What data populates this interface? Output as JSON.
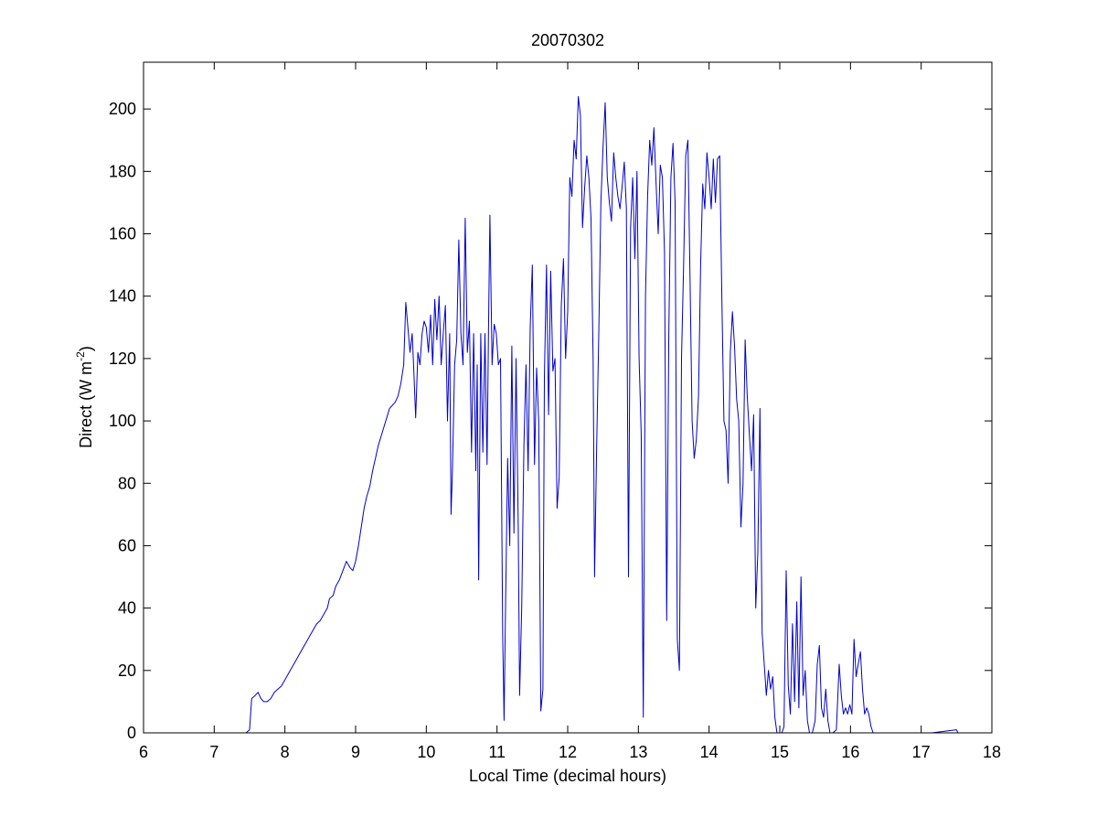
{
  "chart_data": {
    "type": "line",
    "title": "20070302",
    "xlabel": "Local Time (decimal hours)",
    "ylabel": {
      "main": "Direct (W m",
      "superscript": "-2",
      "close": ")"
    },
    "xlim": [
      6,
      18
    ],
    "ylim": [
      0,
      215
    ],
    "x_ticks": [
      6,
      7,
      8,
      9,
      10,
      11,
      12,
      13,
      14,
      15,
      16,
      17,
      18
    ],
    "y_ticks": [
      0,
      20,
      40,
      60,
      80,
      100,
      120,
      140,
      160,
      180,
      200
    ],
    "grid": false,
    "legend": "none",
    "series": [
      {
        "color": "#0000cc",
        "points": [
          [
            6.85,
            0
          ],
          [
            7.45,
            0
          ],
          [
            7.5,
            1
          ],
          [
            7.53,
            11
          ],
          [
            7.58,
            12
          ],
          [
            7.62,
            13
          ],
          [
            7.66,
            11
          ],
          [
            7.7,
            10
          ],
          [
            7.75,
            10
          ],
          [
            7.8,
            11
          ],
          [
            7.85,
            13
          ],
          [
            7.9,
            14
          ],
          [
            7.95,
            15
          ],
          [
            8.0,
            17
          ],
          [
            8.05,
            19
          ],
          [
            8.1,
            21
          ],
          [
            8.15,
            23
          ],
          [
            8.2,
            25
          ],
          [
            8.25,
            27
          ],
          [
            8.3,
            29
          ],
          [
            8.35,
            31
          ],
          [
            8.4,
            33
          ],
          [
            8.45,
            35
          ],
          [
            8.5,
            36
          ],
          [
            8.55,
            38
          ],
          [
            8.6,
            40
          ],
          [
            8.63,
            43
          ],
          [
            8.68,
            44
          ],
          [
            8.72,
            47
          ],
          [
            8.77,
            49
          ],
          [
            8.82,
            52
          ],
          [
            8.87,
            55
          ],
          [
            8.92,
            53
          ],
          [
            8.96,
            52
          ],
          [
            9.0,
            55
          ],
          [
            9.04,
            60
          ],
          [
            9.08,
            66
          ],
          [
            9.12,
            72
          ],
          [
            9.16,
            76
          ],
          [
            9.2,
            79
          ],
          [
            9.24,
            84
          ],
          [
            9.28,
            88
          ],
          [
            9.32,
            92
          ],
          [
            9.36,
            95
          ],
          [
            9.4,
            98
          ],
          [
            9.44,
            101
          ],
          [
            9.48,
            104
          ],
          [
            9.52,
            105
          ],
          [
            9.56,
            106
          ],
          [
            9.6,
            108
          ],
          [
            9.64,
            112
          ],
          [
            9.68,
            118
          ],
          [
            9.71,
            138
          ],
          [
            9.74,
            130
          ],
          [
            9.77,
            122
          ],
          [
            9.8,
            128
          ],
          [
            9.82,
            118
          ],
          [
            9.85,
            101
          ],
          [
            9.88,
            122
          ],
          [
            9.91,
            118
          ],
          [
            9.94,
            128
          ],
          [
            9.97,
            132
          ],
          [
            10.0,
            130
          ],
          [
            10.03,
            122
          ],
          [
            10.06,
            134
          ],
          [
            10.09,
            118
          ],
          [
            10.12,
            139
          ],
          [
            10.15,
            126
          ],
          [
            10.18,
            140
          ],
          [
            10.21,
            118
          ],
          [
            10.24,
            128
          ],
          [
            10.27,
            137
          ],
          [
            10.3,
            100
          ],
          [
            10.33,
            128
          ],
          [
            10.35,
            70
          ],
          [
            10.37,
            84
          ],
          [
            10.4,
            118
          ],
          [
            10.43,
            126
          ],
          [
            10.46,
            158
          ],
          [
            10.49,
            128
          ],
          [
            10.52,
            118
          ],
          [
            10.55,
            165
          ],
          [
            10.58,
            122
          ],
          [
            10.61,
            132
          ],
          [
            10.64,
            90
          ],
          [
            10.67,
            128
          ],
          [
            10.7,
            84
          ],
          [
            10.72,
            118
          ],
          [
            10.74,
            49
          ],
          [
            10.77,
            128
          ],
          [
            10.8,
            90
          ],
          [
            10.83,
            128
          ],
          [
            10.86,
            86
          ],
          [
            10.88,
            130
          ],
          [
            10.9,
            166
          ],
          [
            10.93,
            118
          ],
          [
            10.96,
            131
          ],
          [
            10.99,
            128
          ],
          [
            11.02,
            118
          ],
          [
            11.05,
            120
          ],
          [
            11.08,
            31
          ],
          [
            11.1,
            4
          ],
          [
            11.12,
            38
          ],
          [
            11.15,
            88
          ],
          [
            11.18,
            60
          ],
          [
            11.21,
            124
          ],
          [
            11.24,
            64
          ],
          [
            11.27,
            120
          ],
          [
            11.3,
            66
          ],
          [
            11.32,
            12
          ],
          [
            11.35,
            40
          ],
          [
            11.38,
            92
          ],
          [
            11.41,
            118
          ],
          [
            11.44,
            84
          ],
          [
            11.47,
            130
          ],
          [
            11.5,
            150
          ],
          [
            11.53,
            86
          ],
          [
            11.56,
            117
          ],
          [
            11.59,
            100
          ],
          [
            11.62,
            7
          ],
          [
            11.65,
            14
          ],
          [
            11.67,
            114
          ],
          [
            11.7,
            150
          ],
          [
            11.73,
            102
          ],
          [
            11.76,
            148
          ],
          [
            11.79,
            116
          ],
          [
            11.82,
            120
          ],
          [
            11.85,
            72
          ],
          [
            11.88,
            82
          ],
          [
            11.91,
            137
          ],
          [
            11.94,
            152
          ],
          [
            11.97,
            120
          ],
          [
            12.0,
            135
          ],
          [
            12.03,
            178
          ],
          [
            12.06,
            172
          ],
          [
            12.09,
            190
          ],
          [
            12.12,
            184
          ],
          [
            12.15,
            204
          ],
          [
            12.18,
            198
          ],
          [
            12.21,
            162
          ],
          [
            12.24,
            175
          ],
          [
            12.27,
            185
          ],
          [
            12.3,
            178
          ],
          [
            12.33,
            165
          ],
          [
            12.36,
            120
          ],
          [
            12.38,
            50
          ],
          [
            12.41,
            92
          ],
          [
            12.44,
            128
          ],
          [
            12.47,
            170
          ],
          [
            12.5,
            188
          ],
          [
            12.53,
            202
          ],
          [
            12.56,
            178
          ],
          [
            12.59,
            170
          ],
          [
            12.62,
            164
          ],
          [
            12.65,
            186
          ],
          [
            12.68,
            178
          ],
          [
            12.71,
            172
          ],
          [
            12.74,
            168
          ],
          [
            12.77,
            175
          ],
          [
            12.8,
            183
          ],
          [
            12.83,
            168
          ],
          [
            12.86,
            50
          ],
          [
            12.89,
            162
          ],
          [
            12.92,
            178
          ],
          [
            12.95,
            152
          ],
          [
            12.98,
            180
          ],
          [
            13.01,
            120
          ],
          [
            13.04,
            96
          ],
          [
            13.07,
            5
          ],
          [
            13.1,
            140
          ],
          [
            13.13,
            172
          ],
          [
            13.16,
            190
          ],
          [
            13.19,
            182
          ],
          [
            13.22,
            194
          ],
          [
            13.25,
            176
          ],
          [
            13.28,
            160
          ],
          [
            13.31,
            182
          ],
          [
            13.34,
            178
          ],
          [
            13.37,
            154
          ],
          [
            13.4,
            36
          ],
          [
            13.43,
            128
          ],
          [
            13.46,
            178
          ],
          [
            13.49,
            189
          ],
          [
            13.52,
            170
          ],
          [
            13.55,
            30
          ],
          [
            13.58,
            20
          ],
          [
            13.61,
            120
          ],
          [
            13.64,
            150
          ],
          [
            13.67,
            185
          ],
          [
            13.7,
            190
          ],
          [
            13.73,
            146
          ],
          [
            13.76,
            100
          ],
          [
            13.79,
            88
          ],
          [
            13.82,
            94
          ],
          [
            13.85,
            108
          ],
          [
            13.88,
            150
          ],
          [
            13.91,
            176
          ],
          [
            13.94,
            168
          ],
          [
            13.97,
            186
          ],
          [
            14.0,
            178
          ],
          [
            14.03,
            168
          ],
          [
            14.06,
            184
          ],
          [
            14.09,
            170
          ],
          [
            14.12,
            184
          ],
          [
            14.15,
            185
          ],
          [
            14.18,
            140
          ],
          [
            14.21,
            100
          ],
          [
            14.24,
            97
          ],
          [
            14.27,
            80
          ],
          [
            14.3,
            122
          ],
          [
            14.33,
            135
          ],
          [
            14.36,
            124
          ],
          [
            14.39,
            107
          ],
          [
            14.42,
            100
          ],
          [
            14.45,
            66
          ],
          [
            14.48,
            80
          ],
          [
            14.51,
            126
          ],
          [
            14.54,
            108
          ],
          [
            14.57,
            96
          ],
          [
            14.6,
            84
          ],
          [
            14.63,
            102
          ],
          [
            14.66,
            40
          ],
          [
            14.69,
            58
          ],
          [
            14.72,
            104
          ],
          [
            14.75,
            32
          ],
          [
            14.78,
            22
          ],
          [
            14.81,
            12
          ],
          [
            14.84,
            20
          ],
          [
            14.87,
            14
          ],
          [
            14.9,
            18
          ],
          [
            14.93,
            5
          ],
          [
            14.96,
            0
          ],
          [
            15.0,
            0
          ],
          [
            15.03,
            0
          ],
          [
            15.06,
            2
          ],
          [
            15.09,
            52
          ],
          [
            15.12,
            15
          ],
          [
            15.15,
            6
          ],
          [
            15.18,
            35
          ],
          [
            15.21,
            10
          ],
          [
            15.24,
            42
          ],
          [
            15.27,
            8
          ],
          [
            15.3,
            50
          ],
          [
            15.33,
            12
          ],
          [
            15.36,
            20
          ],
          [
            15.39,
            4
          ],
          [
            15.42,
            0
          ],
          [
            15.46,
            0
          ],
          [
            15.5,
            4
          ],
          [
            15.53,
            22
          ],
          [
            15.56,
            28
          ],
          [
            15.59,
            8
          ],
          [
            15.62,
            5
          ],
          [
            15.65,
            14
          ],
          [
            15.68,
            4
          ],
          [
            15.71,
            0
          ],
          [
            15.75,
            0
          ],
          [
            15.8,
            1
          ],
          [
            15.84,
            22
          ],
          [
            15.87,
            12
          ],
          [
            15.9,
            6
          ],
          [
            15.93,
            8
          ],
          [
            15.96,
            6
          ],
          [
            15.99,
            9
          ],
          [
            16.02,
            6
          ],
          [
            16.05,
            30
          ],
          [
            16.08,
            18
          ],
          [
            16.11,
            22
          ],
          [
            16.14,
            26
          ],
          [
            16.17,
            14
          ],
          [
            16.2,
            6
          ],
          [
            16.23,
            8
          ],
          [
            16.26,
            6
          ],
          [
            16.29,
            2
          ],
          [
            16.32,
            0
          ],
          [
            16.36,
            0
          ],
          [
            16.6,
            0
          ],
          [
            17.15,
            0
          ],
          [
            17.5,
            1
          ],
          [
            17.52,
            0
          ],
          [
            17.95,
            0
          ]
        ]
      }
    ]
  }
}
